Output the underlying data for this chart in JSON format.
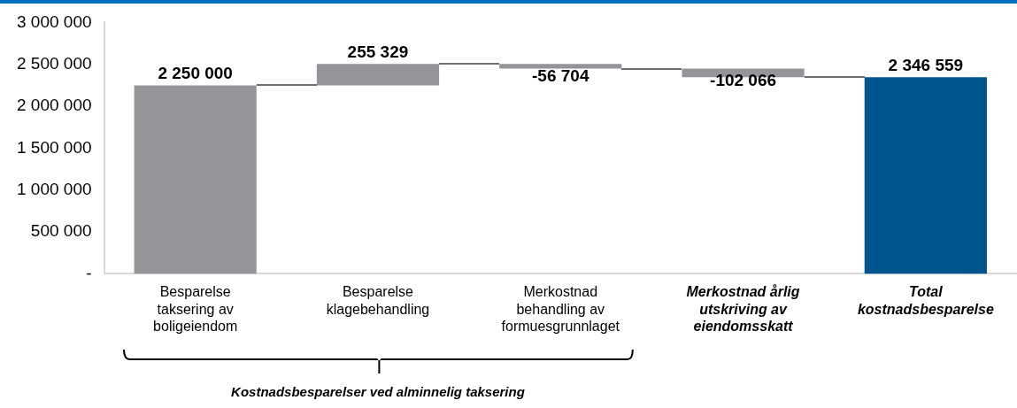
{
  "chart_data": {
    "type": "bar",
    "categories": [
      "Besparelse taksering av boligeiendom",
      "Besparelse klagebehandling",
      "Merkostnad behandling av formuesgrunnlaget",
      "Merkostnad årlig utskriving av eiendomsskatt",
      "Total kostnadsbesparelse"
    ],
    "values": [
      2250000,
      255329,
      -56704,
      -102066,
      2346559
    ],
    "base": [
      0,
      2250000,
      2505329,
      2448625,
      0
    ],
    "colors": [
      "#939598",
      "#939598",
      "#939598",
      "#939598",
      "#00558c"
    ],
    "value_labels": [
      "2 250 000",
      "255 329",
      "-56 704",
      "-102 066",
      "2 346 559"
    ],
    "ylim": [
      0,
      3000000
    ],
    "yticks": [
      {
        "value": 0,
        "label": "-"
      },
      {
        "value": 500000,
        "label": "500 000"
      },
      {
        "value": 1000000,
        "label": "1 000 000"
      },
      {
        "value": 1500000,
        "label": "1 500 000"
      },
      {
        "value": 2000000,
        "label": "2 000 000"
      },
      {
        "value": 2500000,
        "label": "2 500 000"
      },
      {
        "value": 3000000,
        "label": "3 000 000"
      }
    ],
    "grid": false,
    "legend": false,
    "annotations": [
      "Kostnadsbesparelser ved alminnelig taksering"
    ]
  }
}
